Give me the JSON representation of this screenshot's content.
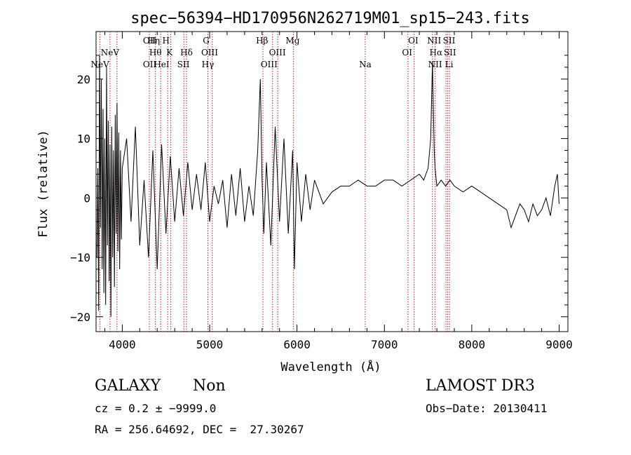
{
  "chart_data": {
    "type": "line",
    "title": "spec−56394−HD170956N262719M01_sp15−243.fits",
    "xlabel": "Wavelength (Å)",
    "ylabel": "Flux (relative)",
    "xlim": [
      3700,
      9100
    ],
    "ylim": [
      -22.5,
      28
    ],
    "xticks": [
      {
        "value": 4000,
        "label": "4000"
      },
      {
        "value": 5000,
        "label": "5000"
      },
      {
        "value": 6000,
        "label": "6000"
      },
      {
        "value": 7000,
        "label": "7000"
      },
      {
        "value": 8000,
        "label": "8000"
      },
      {
        "value": 9000,
        "label": "9000"
      }
    ],
    "yticks": [
      {
        "value": 20,
        "label": "20"
      },
      {
        "value": 10,
        "label": "10"
      },
      {
        "value": 0,
        "label": "0"
      },
      {
        "value": -10,
        "label": "−10"
      },
      {
        "value": -20,
        "label": "−20"
      }
    ],
    "series": [
      {
        "name": "spectrum",
        "x": [
          3710,
          3720,
          3730,
          3740,
          3750,
          3760,
          3770,
          3780,
          3790,
          3800,
          3810,
          3820,
          3830,
          3840,
          3850,
          3860,
          3870,
          3880,
          3890,
          3900,
          3910,
          3920,
          3930,
          3940,
          3950,
          3960,
          3970,
          3980,
          3990,
          4000,
          4050,
          4100,
          4150,
          4200,
          4250,
          4300,
          4350,
          4400,
          4450,
          4500,
          4550,
          4600,
          4650,
          4700,
          4750,
          4800,
          4850,
          4900,
          4950,
          5000,
          5050,
          5100,
          5150,
          5200,
          5250,
          5300,
          5350,
          5400,
          5450,
          5500,
          5550,
          5580,
          5600,
          5620,
          5650,
          5700,
          5750,
          5800,
          5850,
          5900,
          5950,
          5970,
          6000,
          6050,
          6100,
          6150,
          6200,
          6300,
          6400,
          6500,
          6600,
          6700,
          6800,
          6900,
          7000,
          7100,
          7200,
          7300,
          7400,
          7450,
          7500,
          7530,
          7550,
          7560,
          7570,
          7580,
          7600,
          7650,
          7700,
          7750,
          7800,
          7900,
          8000,
          8100,
          8200,
          8300,
          8400,
          8450,
          8500,
          8550,
          8600,
          8650,
          8700,
          8750,
          8800,
          8850,
          8900,
          8950,
          8980,
          9000
        ],
        "y": [
          -10,
          5,
          -19,
          24,
          -5,
          20,
          -12,
          15,
          -16,
          10,
          -18,
          22,
          -8,
          13,
          -14,
          9,
          -20,
          12,
          -10,
          8,
          -15,
          14,
          -6,
          16,
          -9,
          11,
          -12,
          8,
          -7,
          5,
          10,
          -4,
          12,
          -8,
          3,
          -10,
          8,
          -12,
          9,
          -6,
          7,
          -4,
          5,
          -3,
          6,
          -2,
          4,
          -2,
          6,
          -4,
          2,
          -1,
          3,
          -5,
          4,
          -3,
          5,
          -4,
          2,
          -3,
          8,
          20,
          3,
          -6,
          6,
          -8,
          12,
          -4,
          10,
          -6,
          8,
          -12,
          6,
          -4,
          4,
          -2,
          3,
          -1,
          1,
          2,
          2,
          3,
          2,
          2,
          3,
          3,
          2,
          3,
          4,
          3,
          5,
          10,
          23,
          15,
          8,
          5,
          2,
          3,
          2,
          3,
          2,
          1,
          2,
          1,
          0,
          -1,
          -2,
          -5,
          -3,
          -1,
          -2,
          -4,
          -1,
          -3,
          -2,
          0,
          -3,
          2,
          4,
          -1
        ]
      }
    ],
    "lines": [
      {
        "label": "NeV",
        "wavelength": 3746,
        "row": 3
      },
      {
        "label": "NeV",
        "wavelength": 3860,
        "row": 2
      },
      {
        "label": "OII",
        "wavelength": 4315,
        "row": 1
      },
      {
        "label": "Hη",
        "wavelength": 4360,
        "row": 1
      },
      {
        "label": "H",
        "wavelength": 4500,
        "row": 1
      },
      {
        "label": "OII",
        "wavelength": 4315,
        "row": 3
      },
      {
        "label": "Hθ",
        "wavelength": 4380,
        "row": 2
      },
      {
        "label": "HeI",
        "wavelength": 4450,
        "row": 3
      },
      {
        "label": "K",
        "wavelength": 4540,
        "row": 2
      },
      {
        "label": "Hδ",
        "wavelength": 4735,
        "row": 2
      },
      {
        "label": "SII",
        "wavelength": 4700,
        "row": 3
      },
      {
        "label": "G",
        "wavelength": 4960,
        "row": 1
      },
      {
        "label": "OIII",
        "wavelength": 5000,
        "row": 2
      },
      {
        "label": "Hγ",
        "wavelength": 4980,
        "row": 3
      },
      {
        "label": "Hβ",
        "wavelength": 5600,
        "row": 1
      },
      {
        "label": "OIII",
        "wavelength": 5775,
        "row": 2
      },
      {
        "label": "OIII",
        "wavelength": 5680,
        "row": 3
      },
      {
        "label": "Mg",
        "wavelength": 5950,
        "row": 1
      },
      {
        "label": "Na",
        "wavelength": 6780,
        "row": 3
      },
      {
        "label": "OI",
        "wavelength": 7330,
        "row": 1
      },
      {
        "label": "OI",
        "wavelength": 7260,
        "row": 2
      },
      {
        "label": "NII",
        "wavelength": 7570,
        "row": 1
      },
      {
        "label": "SII",
        "wavelength": 7740,
        "row": 1
      },
      {
        "label": "Hα",
        "wavelength": 7590,
        "row": 2
      },
      {
        "label": "SII",
        "wavelength": 7750,
        "row": 2
      },
      {
        "label": "NII",
        "wavelength": 7580,
        "row": 3
      },
      {
        "label": "Li",
        "wavelength": 7740,
        "row": 3
      }
    ],
    "line_positions": [
      3745,
      3860,
      3940,
      4310,
      4380,
      4440,
      4520,
      4555,
      4705,
      4735,
      4980,
      5030,
      5610,
      5720,
      5780,
      5960,
      6780,
      7270,
      7340,
      7550,
      7580,
      7705,
      7725,
      7745
    ],
    "line_color": "#b22222",
    "grid": false,
    "legend": "none"
  },
  "info": {
    "object_class": "GALAXY",
    "subclass": "Non",
    "survey": "LAMOST DR3",
    "cz": "cz = 0.2 ± −9999.0",
    "obs_date": "Obs−Date: 20130411",
    "radec": "RA = 256.64692, DEC =  27.30267"
  }
}
